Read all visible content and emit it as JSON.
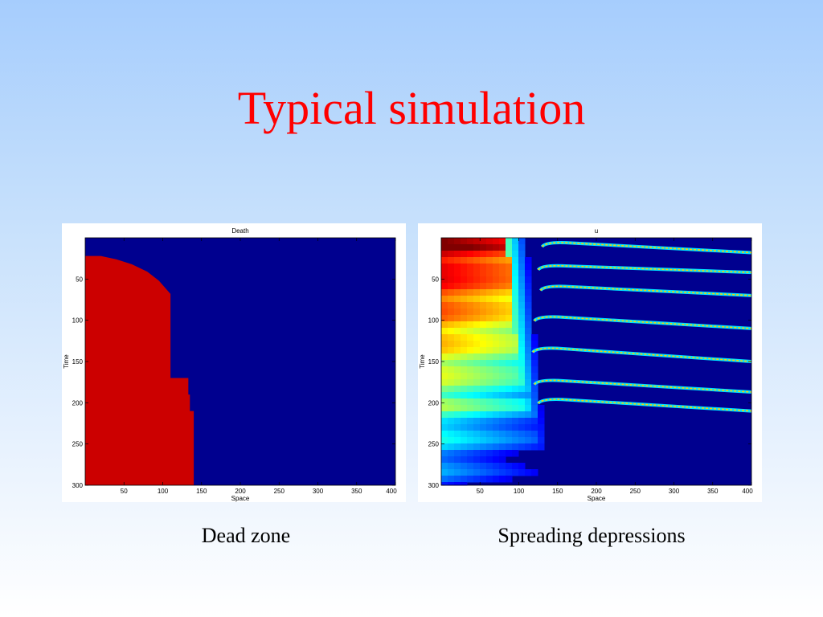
{
  "slide": {
    "title": "Typical simulation",
    "captions": {
      "left": "Dead zone",
      "right": "Spreading depressions"
    }
  },
  "colors": {
    "title": "#ff0000",
    "background_top": "#a6cdfd",
    "background_bottom": "#ffffff",
    "colormap_low": "#00008f",
    "colormap_high": "#cc0000"
  },
  "chart_data": [
    {
      "type": "heatmap",
      "title": "Death",
      "xlabel": "Space",
      "ylabel": "Time",
      "xlim": [
        0,
        400
      ],
      "ylim": [
        300,
        0
      ],
      "x_ticks": [
        50,
        100,
        150,
        200,
        250,
        300,
        350,
        400
      ],
      "y_ticks": [
        50,
        100,
        150,
        200,
        250,
        300
      ],
      "dead_zone_boundary": [
        [
          0,
          22
        ],
        [
          20,
          22
        ],
        [
          40,
          26
        ],
        [
          60,
          32
        ],
        [
          80,
          41
        ],
        [
          95,
          52
        ],
        [
          110,
          68
        ],
        [
          110,
          170
        ],
        [
          133,
          170
        ],
        [
          133,
          190
        ],
        [
          135,
          190
        ],
        [
          135,
          210
        ],
        [
          140,
          210
        ],
        [
          140,
          300
        ]
      ]
    },
    {
      "type": "heatmap",
      "title": "u",
      "xlabel": "Space",
      "ylabel": "Time",
      "xlim": [
        0,
        400
      ],
      "ylim": [
        300,
        0
      ],
      "x_ticks": [
        50,
        100,
        150,
        200,
        250,
        300,
        350,
        400
      ],
      "y_ticks": [
        50,
        100,
        150,
        200,
        250,
        300
      ],
      "depression_waves": [
        {
          "start_time": 5,
          "end_time": 18,
          "origin_space": 130
        },
        {
          "start_time": 33,
          "end_time": 42,
          "origin_space": 125
        },
        {
          "start_time": 58,
          "end_time": 70,
          "origin_space": 128
        },
        {
          "start_time": 95,
          "end_time": 110,
          "origin_space": 120
        },
        {
          "start_time": 133,
          "end_time": 150,
          "origin_space": 118
        },
        {
          "start_time": 172,
          "end_time": 187,
          "origin_space": 120
        },
        {
          "start_time": 195,
          "end_time": 210,
          "origin_space": 125
        }
      ]
    }
  ]
}
